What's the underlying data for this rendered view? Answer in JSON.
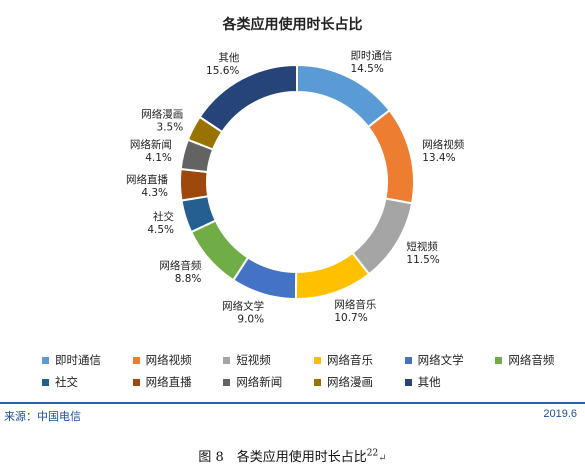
{
  "chart_data": {
    "type": "pie",
    "title": "各类应用使用时长占比",
    "categories": [
      "即时通信",
      "网络视频",
      "短视频",
      "网络音乐",
      "网络文学",
      "网络音频",
      "社交",
      "网络直播",
      "网络新闻",
      "网络漫画",
      "其他"
    ],
    "values": [
      14.5,
      13.4,
      11.5,
      10.7,
      9.0,
      8.8,
      4.5,
      4.3,
      4.1,
      3.5,
      15.6
    ],
    "value_labels": [
      "14.5%",
      "13.4%",
      "11.5%",
      "10.7%",
      "9.0%",
      "8.8%",
      "4.5%",
      "4.3%",
      "4.1%",
      "3.5%",
      "15.6%"
    ],
    "colors": [
      "#5b9bd5",
      "#ed7d31",
      "#a5a5a5",
      "#ffc000",
      "#4472c4",
      "#70ad47",
      "#255e91",
      "#9e480e",
      "#636363",
      "#997300",
      "#264478"
    ],
    "legend_position": "bottom"
  },
  "footer": {
    "source": "来源：中国电信",
    "date": "2019.6"
  },
  "caption": {
    "text": "图 8　各类应用使用时长占比",
    "superscript": "22",
    "mark": "↵"
  }
}
